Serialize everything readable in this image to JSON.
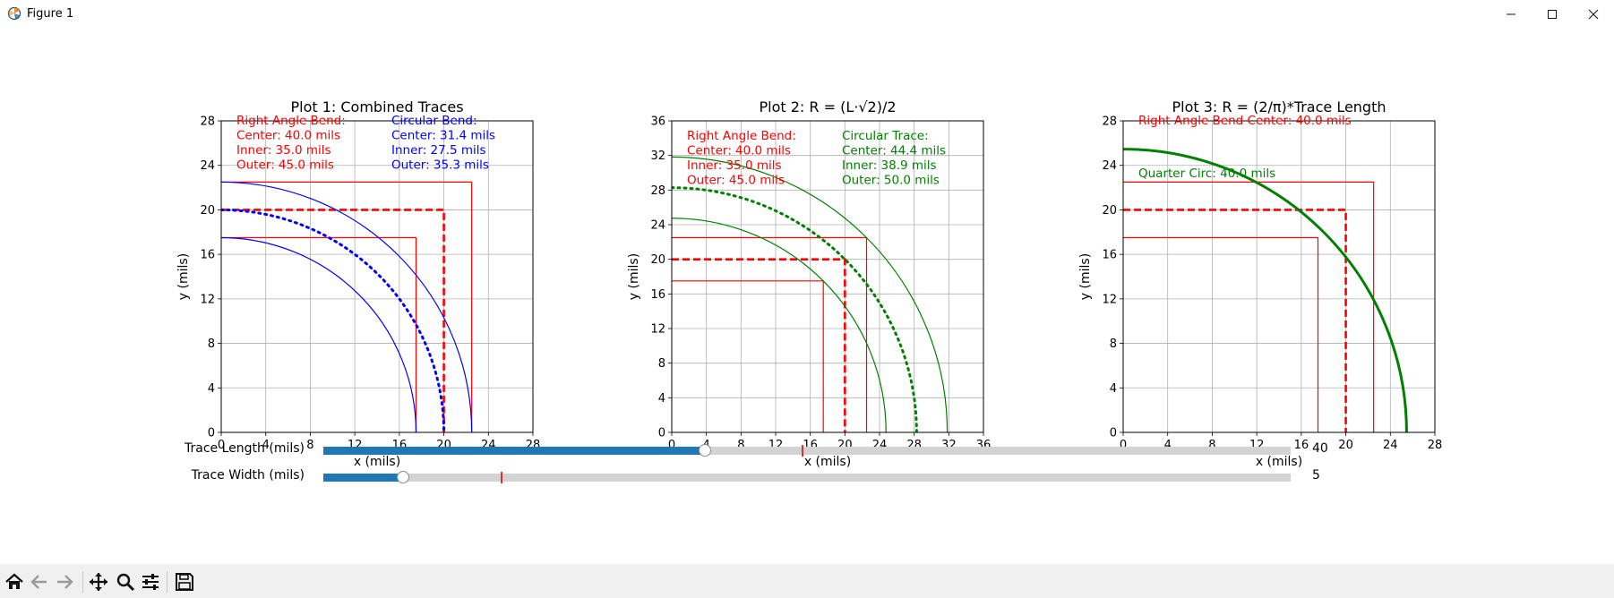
{
  "window": {
    "title": "Figure 1",
    "controls": {
      "minimize": "—",
      "maximize": "☐",
      "close": "✕"
    }
  },
  "colors": {
    "red": "#ff0000",
    "blue": "#0000ff",
    "green": "#008000",
    "slider_fill": "#1f77b4",
    "slider_track": "#d3d3d3"
  },
  "plots": [
    {
      "title": "Plot 1: Combined Traces",
      "xlabel": "x (mils)",
      "ylabel": "y (mils)",
      "xticks": [
        "0",
        "4",
        "8",
        "12",
        "16",
        "20",
        "24",
        "28"
      ],
      "yticks": [
        "0",
        "4",
        "8",
        "12",
        "16",
        "20",
        "24",
        "28"
      ],
      "red_text": [
        "Right Angle Bend:",
        "Center: 40.0 mils",
        "Inner: 35.0 mils",
        "Outer: 45.0 mils"
      ],
      "blue_text": [
        "Circular Bend:",
        "Center: 31.4 mils",
        "Inner: 27.5 mils",
        "Outer: 35.3 mils"
      ]
    },
    {
      "title": "Plot 2: R = (L·√2)/2",
      "xlabel": "x (mils)",
      "ylabel": "y (mils)",
      "xticks": [
        "0",
        "4",
        "8",
        "12",
        "16",
        "20",
        "24",
        "28",
        "32",
        "36"
      ],
      "yticks": [
        "0",
        "4",
        "8",
        "12",
        "16",
        "20",
        "24",
        "28",
        "32",
        "36"
      ],
      "red_text": [
        "Right Angle Bend:",
        "Center: 40.0 mils",
        "Inner: 35.0 mils",
        "Outer: 45.0 mils"
      ],
      "green_text": [
        "Circular Trace:",
        "Center: 44.4 mils",
        "Inner: 38.9 mils",
        "Outer: 50.0 mils"
      ]
    },
    {
      "title": "Plot 3: R = (2/π)*Trace Length",
      "xlabel": "x (mils)",
      "ylabel": "y (mils)",
      "xticks": [
        "0",
        "4",
        "8",
        "12",
        "16",
        "20",
        "24",
        "28"
      ],
      "yticks": [
        "0",
        "4",
        "8",
        "12",
        "16",
        "20",
        "24",
        "28"
      ],
      "red_text": [
        "Right Angle Bend Center: 40.0 mils"
      ],
      "green_text": [
        "Quarter Circ: 40.0 mils"
      ]
    }
  ],
  "sliders": [
    {
      "label": "Trace Length (mils)",
      "value": "40",
      "fraction": 0.394,
      "initial_fraction": 0.495
    },
    {
      "label": "Trace Width (mils)",
      "value": "5",
      "fraction": 0.082,
      "initial_fraction": 0.184
    }
  ],
  "toolbar": {
    "home": "home-icon",
    "back": "back-arrow-icon",
    "forward": "forward-arrow-icon",
    "pan": "pan-icon",
    "zoom": "zoom-icon",
    "configure": "configure-subplots-icon",
    "save": "save-icon"
  },
  "chart_data": [
    {
      "type": "line",
      "title": "Plot 1: Combined Traces",
      "xlabel": "x (mils)",
      "ylabel": "y (mils)",
      "xlim": [
        0,
        28
      ],
      "ylim": [
        0,
        28
      ],
      "grid": true,
      "series": [
        {
          "kind": "right-angle",
          "style": "solid",
          "color": "red",
          "corner": 17.5
        },
        {
          "kind": "right-angle",
          "style": "dashed",
          "color": "red",
          "corner": 20.0
        },
        {
          "kind": "right-angle",
          "style": "solid",
          "color": "red",
          "corner": 22.5
        },
        {
          "kind": "quarter-arc",
          "style": "solid",
          "color": "blue",
          "radius": 17.5
        },
        {
          "kind": "quarter-arc",
          "style": "dotted",
          "color": "blue",
          "radius": 20.0
        },
        {
          "kind": "quarter-arc",
          "style": "solid",
          "color": "blue",
          "radius": 22.5
        }
      ]
    },
    {
      "type": "line",
      "title": "Plot 2: R = (L·√2)/2",
      "xlabel": "x (mils)",
      "ylabel": "y (mils)",
      "xlim": [
        0,
        36
      ],
      "ylim": [
        0,
        36
      ],
      "grid": true,
      "series": [
        {
          "kind": "right-angle",
          "style": "solid",
          "color": "red",
          "corner": 17.5
        },
        {
          "kind": "right-angle",
          "style": "dashed",
          "color": "red",
          "corner": 20.0
        },
        {
          "kind": "right-angle",
          "style": "solid",
          "color": "red",
          "corner": 22.5
        },
        {
          "kind": "quarter-arc",
          "style": "solid",
          "color": "green",
          "radius": 24.75
        },
        {
          "kind": "quarter-arc",
          "style": "dotted",
          "color": "green",
          "radius": 28.28
        },
        {
          "kind": "quarter-arc",
          "style": "solid",
          "color": "green",
          "radius": 31.82
        }
      ]
    },
    {
      "type": "line",
      "title": "Plot 3: R = (2/π)*Trace Length",
      "xlabel": "x (mils)",
      "ylabel": "y (mils)",
      "xlim": [
        0,
        28
      ],
      "ylim": [
        0,
        28
      ],
      "grid": true,
      "series": [
        {
          "kind": "right-angle",
          "style": "solid",
          "color": "red",
          "corner": 17.5
        },
        {
          "kind": "right-angle",
          "style": "dashed",
          "color": "red",
          "corner": 20.0
        },
        {
          "kind": "right-angle",
          "style": "solid",
          "color": "red",
          "corner": 22.5
        },
        {
          "kind": "quarter-arc",
          "style": "thick",
          "color": "green",
          "radius": 25.46
        }
      ]
    }
  ]
}
